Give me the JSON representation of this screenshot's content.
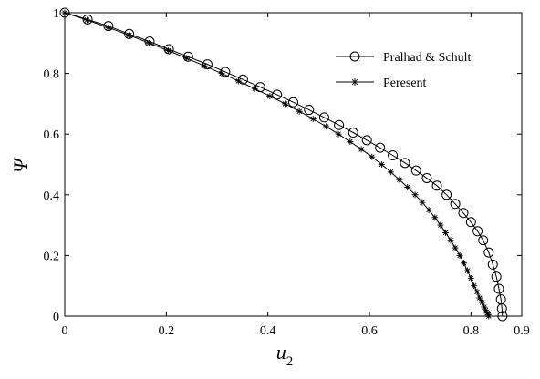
{
  "chart_data": {
    "type": "line",
    "xlabel": "u",
    "xlabel_subscript": "2",
    "ylabel": "Ψ",
    "xlim": [
      0,
      0.9
    ],
    "ylim": [
      0,
      1
    ],
    "xticks": [
      "0",
      "0.2",
      "0.4",
      "0.6",
      "0.8",
      "0.9"
    ],
    "xtick_values": [
      0,
      0.2,
      0.4,
      0.6,
      0.8,
      0.9
    ],
    "yticks": [
      "0",
      "0.2",
      "0.4",
      "0.6",
      "0.8",
      "1"
    ],
    "ytick_values": [
      0,
      0.2,
      0.4,
      0.6,
      0.8,
      1
    ],
    "grid": false,
    "legend_position": "top-right",
    "series": [
      {
        "name": "Pralhad & Schult",
        "marker": "circle",
        "color": "#000000",
        "x": [
          0.0,
          0.045,
          0.086,
          0.127,
          0.167,
          0.205,
          0.243,
          0.281,
          0.316,
          0.351,
          0.385,
          0.418,
          0.45,
          0.481,
          0.511,
          0.54,
          0.568,
          0.595,
          0.621,
          0.646,
          0.67,
          0.692,
          0.713,
          0.733,
          0.752,
          0.769,
          0.785,
          0.8,
          0.813,
          0.824,
          0.835,
          0.843,
          0.85,
          0.855,
          0.859,
          0.861,
          0.862
        ],
        "y": [
          1.0,
          0.978,
          0.956,
          0.93,
          0.905,
          0.88,
          0.855,
          0.83,
          0.805,
          0.78,
          0.755,
          0.73,
          0.705,
          0.68,
          0.655,
          0.63,
          0.605,
          0.58,
          0.555,
          0.53,
          0.505,
          0.48,
          0.455,
          0.43,
          0.4,
          0.37,
          0.34,
          0.31,
          0.28,
          0.25,
          0.21,
          0.17,
          0.13,
          0.09,
          0.055,
          0.025,
          0.0
        ]
      },
      {
        "name": "Peresent",
        "marker": "star",
        "color": "#000000",
        "x": [
          0.0,
          0.044,
          0.086,
          0.127,
          0.166,
          0.204,
          0.24,
          0.275,
          0.309,
          0.342,
          0.374,
          0.404,
          0.434,
          0.462,
          0.489,
          0.515,
          0.539,
          0.562,
          0.584,
          0.605,
          0.624,
          0.642,
          0.659,
          0.675,
          0.69,
          0.704,
          0.717,
          0.729,
          0.74,
          0.75,
          0.76,
          0.769,
          0.778,
          0.786,
          0.793,
          0.8,
          0.806,
          0.812,
          0.817,
          0.822,
          0.826,
          0.829,
          0.832,
          0.834,
          0.835
        ],
        "y": [
          1.0,
          0.976,
          0.951,
          0.926,
          0.9,
          0.875,
          0.85,
          0.825,
          0.8,
          0.775,
          0.75,
          0.725,
          0.7,
          0.675,
          0.65,
          0.625,
          0.6,
          0.575,
          0.55,
          0.525,
          0.5,
          0.475,
          0.45,
          0.425,
          0.4,
          0.375,
          0.35,
          0.325,
          0.3,
          0.275,
          0.25,
          0.225,
          0.2,
          0.175,
          0.15,
          0.125,
          0.1,
          0.08,
          0.06,
          0.045,
          0.03,
          0.02,
          0.01,
          0.005,
          0.0
        ]
      }
    ]
  }
}
